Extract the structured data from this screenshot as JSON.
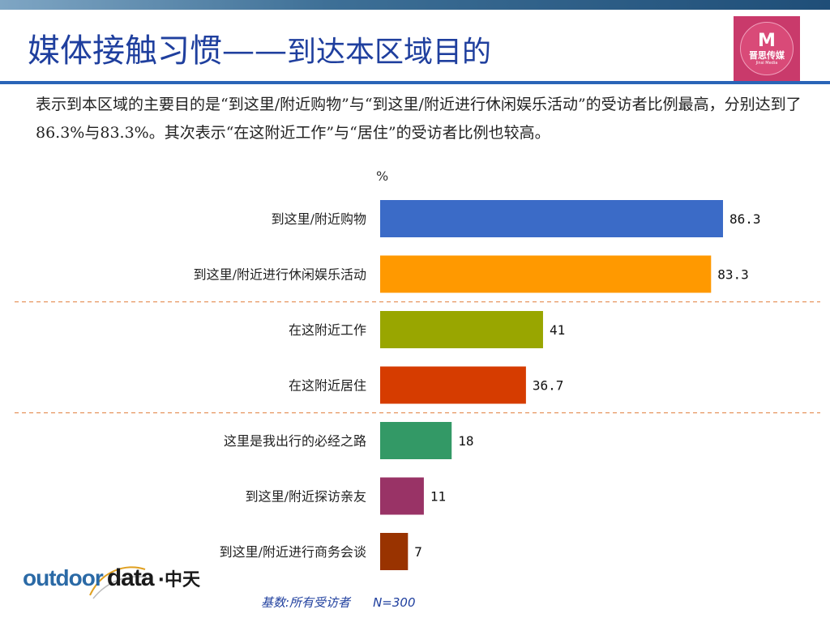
{
  "header": {
    "title_main": "媒体接触习惯——",
    "title_sub": "到达本区域目的"
  },
  "logo": {
    "mark": "M",
    "name": "晋思传媒",
    "sub": "Jinsi  Media"
  },
  "description": "表示到本区域的主要目的是“到这里/附近购物”与“到这里/附近进行休闲娱乐活动”的受访者比例最高，分别达到了86.3%与83.3%。其次表示“在这附近工作”与“居住”的受访者比例也较高。",
  "unit_label": "%",
  "footer": {
    "base_label": "基数:所有受访者",
    "n_label": "N=300",
    "brand_outdoor": "outdoor",
    "brand_data": "data",
    "brand_cn": "·中天"
  },
  "colors": {
    "title": "#1f3f9e",
    "separator": "#e07b39"
  },
  "chart_data": {
    "type": "bar",
    "orientation": "horizontal",
    "categories": [
      "到这里/附近购物",
      "到这里/附近进行休闲娱乐活动",
      "在这附近工作",
      "在这附近居住",
      "这里是我出行的必经之路",
      "到这里/附近探访亲友",
      "到这里/附近进行商务会谈"
    ],
    "values": [
      86.3,
      83.3,
      41,
      36.7,
      18,
      11,
      7
    ],
    "value_labels": [
      "86.3",
      "83.3",
      "41",
      "36.7",
      "18",
      "11",
      "7"
    ],
    "colors": [
      "#3b6bc7",
      "#ff9900",
      "#99a600",
      "#d63c00",
      "#339966",
      "#993366",
      "#993300"
    ],
    "xlim": [
      0,
      100
    ],
    "ylabel": "%",
    "grid": false,
    "group_separators_after": [
      1,
      3
    ]
  }
}
